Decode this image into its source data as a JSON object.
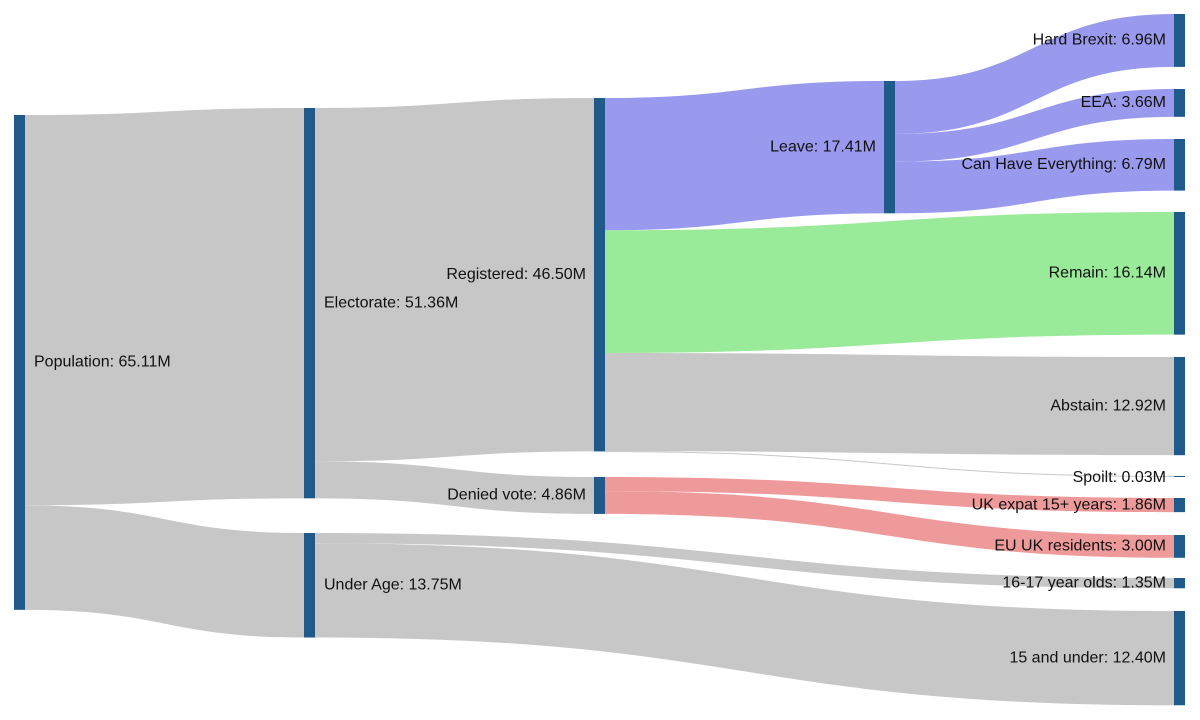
{
  "colors": {
    "node": "#1f5a8a",
    "link_default": "#c4c4c4",
    "leave": "#9999ee",
    "remain": "#99ea99",
    "denied": "#ef9a9a"
  },
  "nodes": [
    {
      "id": "population",
      "label": "Population: 65.11M",
      "value": 65.11
    },
    {
      "id": "electorate",
      "label": "Electorate: 51.36M",
      "value": 51.36
    },
    {
      "id": "under_age",
      "label": "Under Age: 13.75M",
      "value": 13.75
    },
    {
      "id": "registered",
      "label": "Registered: 46.50M",
      "value": 46.5
    },
    {
      "id": "denied_vote",
      "label": "Denied vote: 4.86M",
      "value": 4.86
    },
    {
      "id": "leave",
      "label": "Leave: 17.41M",
      "value": 17.41
    },
    {
      "id": "remain",
      "label": "Remain: 16.14M",
      "value": 16.14
    },
    {
      "id": "abstain",
      "label": "Abstain: 12.92M",
      "value": 12.92
    },
    {
      "id": "spoilt",
      "label": "Spoilt: 0.03M",
      "value": 0.03
    },
    {
      "id": "uk_expat",
      "label": "UK expat 15+ years: 1.86M",
      "value": 1.86
    },
    {
      "id": "eu_uk_residents",
      "label": "EU UK residents: 3.00M",
      "value": 3.0
    },
    {
      "id": "age_16_17",
      "label": "16-17 year olds: 1.35M",
      "value": 1.35
    },
    {
      "id": "age_15_under",
      "label": "15 and under: 12.40M",
      "value": 12.4
    },
    {
      "id": "hard_brexit",
      "label": "Hard Brexit: 6.96M",
      "value": 6.96
    },
    {
      "id": "eea",
      "label": "EEA: 3.66M",
      "value": 3.66
    },
    {
      "id": "can_have_everything",
      "label": "Can Have Everything: 6.79M",
      "value": 6.79
    }
  ],
  "links": [
    {
      "source": "population",
      "target": "electorate",
      "value": 51.36,
      "color": "link_default"
    },
    {
      "source": "population",
      "target": "under_age",
      "value": 13.75,
      "color": "link_default"
    },
    {
      "source": "electorate",
      "target": "registered",
      "value": 46.5,
      "color": "link_default"
    },
    {
      "source": "electorate",
      "target": "denied_vote",
      "value": 4.86,
      "color": "link_default"
    },
    {
      "source": "registered",
      "target": "leave",
      "value": 17.41,
      "color": "leave"
    },
    {
      "source": "registered",
      "target": "remain",
      "value": 16.14,
      "color": "remain"
    },
    {
      "source": "registered",
      "target": "abstain",
      "value": 12.92,
      "color": "link_default"
    },
    {
      "source": "registered",
      "target": "spoilt",
      "value": 0.03,
      "color": "link_default"
    },
    {
      "source": "leave",
      "target": "hard_brexit",
      "value": 6.96,
      "color": "leave"
    },
    {
      "source": "leave",
      "target": "eea",
      "value": 3.66,
      "color": "leave"
    },
    {
      "source": "leave",
      "target": "can_have_everything",
      "value": 6.79,
      "color": "leave"
    },
    {
      "source": "denied_vote",
      "target": "uk_expat",
      "value": 1.86,
      "color": "denied"
    },
    {
      "source": "denied_vote",
      "target": "eu_uk_residents",
      "value": 3.0,
      "color": "denied"
    },
    {
      "source": "under_age",
      "target": "age_16_17",
      "value": 1.35,
      "color": "link_default"
    },
    {
      "source": "under_age",
      "target": "age_15_under",
      "value": 12.4,
      "color": "link_default"
    }
  ]
}
